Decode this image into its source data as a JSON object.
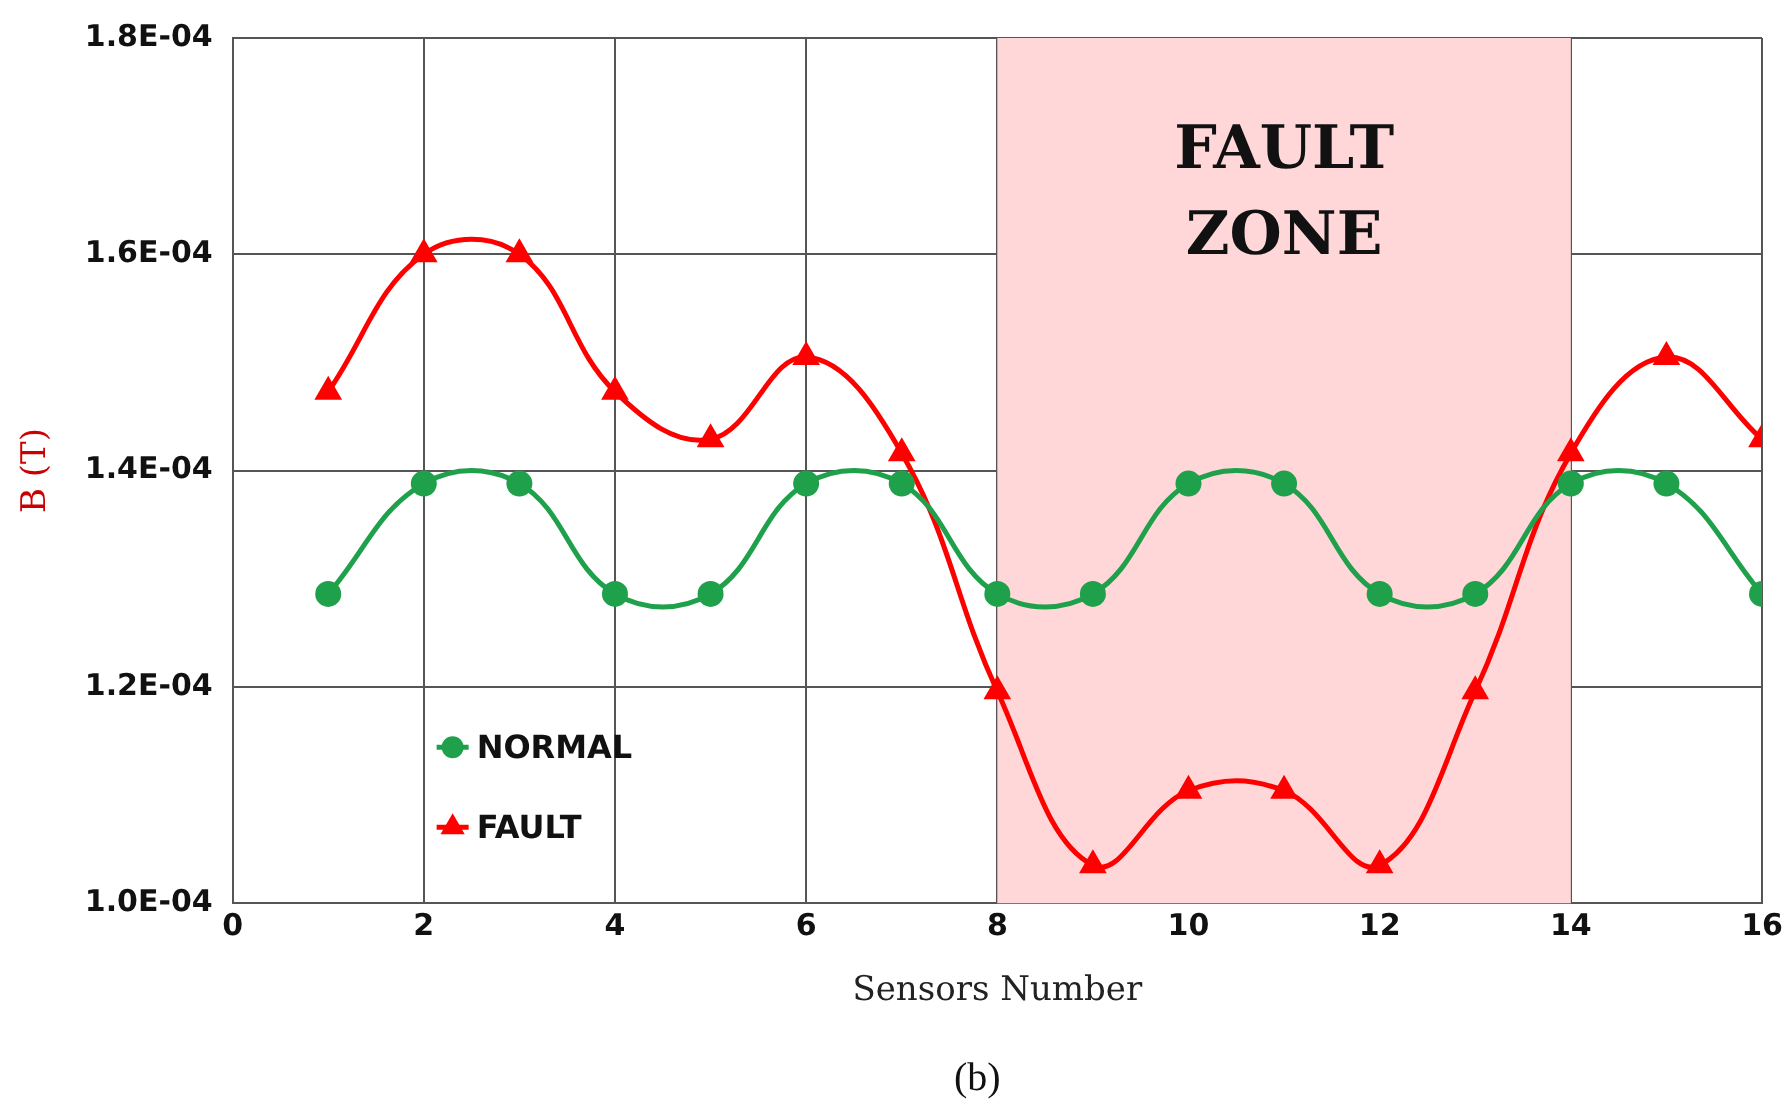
{
  "chart_data": {
    "type": "line",
    "xlabel": "Sensors Number",
    "ylabel": "B (T)",
    "x": [
      1,
      2,
      3,
      4,
      5,
      6,
      7,
      8,
      9,
      10,
      11,
      12,
      13,
      14,
      15,
      16
    ],
    "series": [
      {
        "name": "NORMAL",
        "color": "#1fa04a",
        "marker": "circle",
        "values": [
          0.0001286,
          0.0001388,
          0.0001388,
          0.0001286,
          0.0001286,
          0.0001388,
          0.0001388,
          0.0001286,
          0.0001286,
          0.0001388,
          0.0001388,
          0.0001286,
          0.0001286,
          0.0001388,
          0.0001388,
          0.0001286
        ]
      },
      {
        "name": "FAULT",
        "color": "#ff0000",
        "marker": "triangle",
        "values": [
          0.0001473,
          0.00016,
          0.00016,
          0.0001473,
          0.0001429,
          0.0001505,
          0.0001416,
          0.0001196,
          0.0001035,
          0.0001104,
          0.0001104,
          0.0001035,
          0.0001196,
          0.0001416,
          0.0001505,
          0.0001429
        ]
      }
    ],
    "xlim": [
      0,
      16
    ],
    "xticks": [
      0,
      2,
      4,
      6,
      8,
      10,
      12,
      14,
      16
    ],
    "ylim": [
      0.0001,
      0.00018
    ],
    "yticks": [
      {
        "value": 0.0001,
        "label": "1.0E-04"
      },
      {
        "value": 0.00012,
        "label": "1.2E-04"
      },
      {
        "value": 0.00014,
        "label": "1.4E-04"
      },
      {
        "value": 0.00016,
        "label": "1.6E-04"
      },
      {
        "value": 0.00018,
        "label": "1.8E-04"
      }
    ],
    "bands": [
      {
        "axis": "x",
        "from": 8,
        "to": 14,
        "label": "FAULT ZONE",
        "color": "#ffd7d9"
      }
    ],
    "annotations": [
      "(b)"
    ],
    "grid": true,
    "legend": "bottom left",
    "line_style": "solid"
  }
}
